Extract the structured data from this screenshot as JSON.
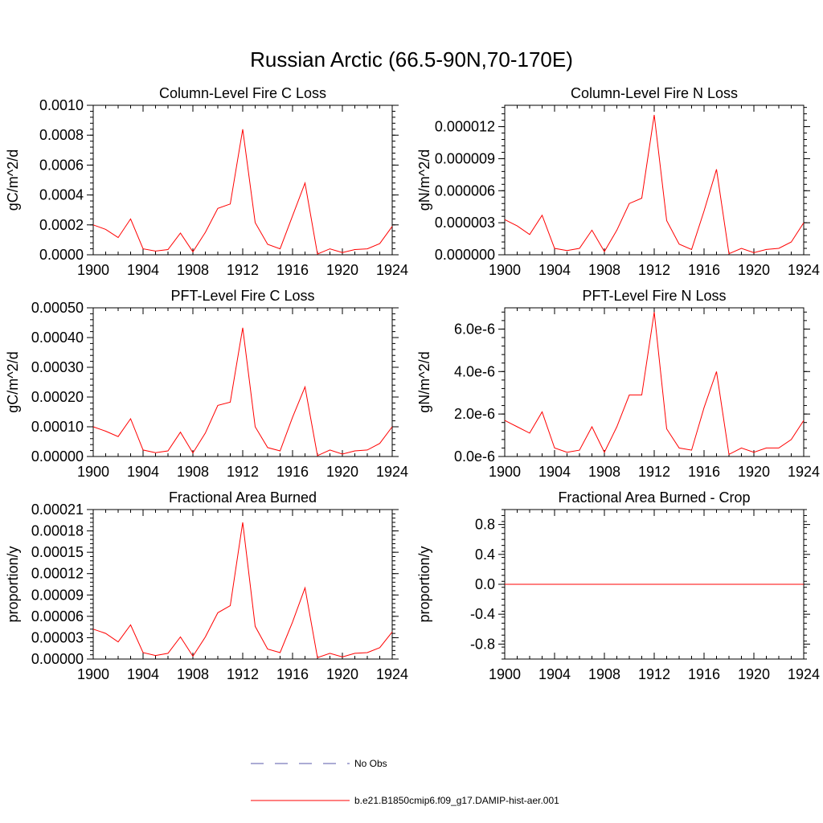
{
  "figure": {
    "title": "Russian Arctic (66.5-90N,70-170E)"
  },
  "colors": {
    "model_line": "#ff0000",
    "obs_line": "#5a5aa8",
    "axes": "#000000"
  },
  "legend": {
    "placement": "bottom-center",
    "entries": [
      {
        "label": "No Obs",
        "style": "dashed",
        "color": "#5a5aa8"
      },
      {
        "label": "b.e21.B1850cmip6.f09_g17.DAMIP-hist-aer.001",
        "style": "solid",
        "color": "#ff0000"
      }
    ]
  },
  "chart_data": [
    {
      "type": "line",
      "title": "Column-Level Fire C Loss",
      "xlabel": "",
      "ylabel": "gC/m^2/d",
      "xlim": [
        1900,
        1924
      ],
      "ylim": [
        0,
        0.001
      ],
      "xticks": [
        1900,
        1904,
        1908,
        1912,
        1916,
        1920,
        1924
      ],
      "xtick_labels": [
        "1900",
        "1904",
        "1908",
        "1912",
        "1916",
        "1920",
        "1924"
      ],
      "yticks": [
        0,
        0.0002,
        0.0004,
        0.0006,
        0.0008,
        0.001
      ],
      "ytick_labels": [
        "0.0000",
        "0.0002",
        "0.0004",
        "0.0006",
        "0.0008",
        "0.0010"
      ],
      "grid": false,
      "x": [
        1900,
        1901,
        1902,
        1903,
        1904,
        1905,
        1906,
        1907,
        1908,
        1909,
        1910,
        1911,
        1912,
        1913,
        1914,
        1915,
        1916,
        1917,
        1918,
        1919,
        1920,
        1921,
        1922,
        1923,
        1924
      ],
      "series": [
        {
          "values": [
            0.0002,
            0.00017,
            0.000115,
            0.00024,
            4e-05,
            2.5e-05,
            3.5e-05,
            0.000145,
            2e-05,
            0.00015,
            0.00031,
            0.00034,
            0.00084,
            0.000215,
            7e-05,
            4e-05,
            0.00026,
            0.00048,
            5e-06,
            4e-05,
            1.5e-05,
            3.5e-05,
            4e-05,
            7.5e-05,
            0.00019
          ],
          "color": "#ff0000"
        }
      ]
    },
    {
      "type": "line",
      "title": "Column-Level Fire N Loss",
      "xlabel": "",
      "ylabel": "gN/m^2/d",
      "xlim": [
        1900,
        1924
      ],
      "ylim": [
        0,
        1.4e-05
      ],
      "xticks": [
        1900,
        1904,
        1908,
        1912,
        1916,
        1920,
        1924
      ],
      "xtick_labels": [
        "1900",
        "1904",
        "1908",
        "1912",
        "1916",
        "1920",
        "1924"
      ],
      "yticks": [
        0,
        3e-06,
        6e-06,
        9e-06,
        1.2e-05
      ],
      "ytick_labels": [
        "0.000000",
        "0.000003",
        "0.000006",
        "0.000009",
        "0.000012"
      ],
      "grid": false,
      "x": [
        1900,
        1901,
        1902,
        1903,
        1904,
        1905,
        1906,
        1907,
        1908,
        1909,
        1910,
        1911,
        1912,
        1913,
        1914,
        1915,
        1916,
        1917,
        1918,
        1919,
        1920,
        1921,
        1922,
        1923,
        1924
      ],
      "series": [
        {
          "values": [
            3.3e-06,
            2.7e-06,
            1.9e-06,
            3.7e-06,
            6e-07,
            4e-07,
            6e-07,
            2.3e-06,
            3e-07,
            2.3e-06,
            4.8e-06,
            5.3e-06,
            1.31e-05,
            3.2e-06,
            1e-06,
            5e-07,
            4.1e-06,
            8e-06,
            1e-07,
            6e-07,
            2e-07,
            5e-07,
            6e-07,
            1.2e-06,
            3e-06
          ],
          "color": "#ff0000"
        }
      ]
    },
    {
      "type": "line",
      "title": "PFT-Level Fire C Loss",
      "xlabel": "",
      "ylabel": "gC/m^2/d",
      "xlim": [
        1900,
        1924
      ],
      "ylim": [
        0,
        0.0005
      ],
      "xticks": [
        1900,
        1904,
        1908,
        1912,
        1916,
        1920,
        1924
      ],
      "xtick_labels": [
        "1900",
        "1904",
        "1908",
        "1912",
        "1916",
        "1920",
        "1924"
      ],
      "yticks": [
        0,
        0.0001,
        0.0002,
        0.0003,
        0.0004,
        0.0005
      ],
      "ytick_labels": [
        "0.00000",
        "0.00010",
        "0.00020",
        "0.00030",
        "0.00040",
        "0.00050"
      ],
      "grid": false,
      "x": [
        1900,
        1901,
        1902,
        1903,
        1904,
        1905,
        1906,
        1907,
        1908,
        1909,
        1910,
        1911,
        1912,
        1913,
        1914,
        1915,
        1916,
        1917,
        1918,
        1919,
        1920,
        1921,
        1922,
        1923,
        1924
      ],
      "series": [
        {
          "values": [
            0.0001,
            8.5e-05,
            6.7e-05,
            0.000127,
            2.2e-05,
            1.3e-05,
            1.9e-05,
            8.2e-05,
            1.2e-05,
            7.9e-05,
            0.000172,
            0.000183,
            0.000433,
            0.0001,
            3e-05,
            1.9e-05,
            0.000132,
            0.000234,
            3e-06,
            2.2e-05,
            8e-06,
            1.9e-05,
            2.2e-05,
            4.4e-05,
            0.0001
          ],
          "color": "#ff0000"
        }
      ]
    },
    {
      "type": "line",
      "title": "PFT-Level Fire N Loss",
      "xlabel": "",
      "ylabel": "gN/m^2/d",
      "xlim": [
        1900,
        1924
      ],
      "ylim": [
        0,
        7e-06
      ],
      "xticks": [
        1900,
        1904,
        1908,
        1912,
        1916,
        1920,
        1924
      ],
      "xtick_labels": [
        "1900",
        "1904",
        "1908",
        "1912",
        "1916",
        "1920",
        "1924"
      ],
      "yticks": [
        0,
        2e-06,
        4e-06,
        6e-06
      ],
      "ytick_labels": [
        "0.0e-6",
        "2.0e-6",
        "4.0e-6",
        "6.0e-6"
      ],
      "grid": false,
      "x": [
        1900,
        1901,
        1902,
        1903,
        1904,
        1905,
        1906,
        1907,
        1908,
        1909,
        1910,
        1911,
        1912,
        1913,
        1914,
        1915,
        1916,
        1917,
        1918,
        1919,
        1920,
        1921,
        1922,
        1923,
        1924
      ],
      "series": [
        {
          "values": [
            1.7e-06,
            1.4e-06,
            1.1e-06,
            2.1e-06,
            4e-07,
            2e-07,
            3e-07,
            1.4e-06,
            2e-07,
            1.4e-06,
            2.9e-06,
            2.9e-06,
            6.8e-06,
            1.3e-06,
            4e-07,
            3e-07,
            2.3e-06,
            4e-06,
            1e-07,
            4e-07,
            2e-07,
            4e-07,
            4e-07,
            8e-07,
            1.7e-06
          ],
          "color": "#ff0000"
        }
      ]
    },
    {
      "type": "line",
      "title": "Fractional Area Burned",
      "xlabel": "",
      "ylabel": "proportion/y",
      "xlim": [
        1900,
        1924
      ],
      "ylim": [
        0,
        0.00021
      ],
      "xticks": [
        1900,
        1904,
        1908,
        1912,
        1916,
        1920,
        1924
      ],
      "xtick_labels": [
        "1900",
        "1904",
        "1908",
        "1912",
        "1916",
        "1920",
        "1924"
      ],
      "yticks": [
        0,
        3e-05,
        6e-05,
        9e-05,
        0.00012,
        0.00015,
        0.00018,
        0.00021
      ],
      "ytick_labels": [
        "0.00000",
        "0.00003",
        "0.00006",
        "0.00009",
        "0.00012",
        "0.00015",
        "0.00018",
        "0.00021"
      ],
      "grid": false,
      "x": [
        1900,
        1901,
        1902,
        1903,
        1904,
        1905,
        1906,
        1907,
        1908,
        1909,
        1910,
        1911,
        1912,
        1913,
        1914,
        1915,
        1916,
        1917,
        1918,
        1919,
        1920,
        1921,
        1922,
        1923,
        1924
      ],
      "series": [
        {
          "values": [
            4.2e-05,
            3.6e-05,
            2.4e-05,
            4.8e-05,
            9e-06,
            5e-06,
            8e-06,
            3.1e-05,
            4e-06,
            3.1e-05,
            6.5e-05,
            7.5e-05,
            0.000192,
            4.6e-05,
            1.4e-05,
            9e-06,
            5.2e-05,
            0.0001,
            2e-06,
            8e-06,
            3e-06,
            8e-06,
            9e-06,
            1.6e-05,
            3.8e-05
          ],
          "color": "#ff0000"
        }
      ]
    },
    {
      "type": "line",
      "title": "Fractional Area Burned - Crop",
      "xlabel": "",
      "ylabel": "proportion/y",
      "xlim": [
        1900,
        1924
      ],
      "ylim": [
        -1,
        1
      ],
      "xticks": [
        1900,
        1904,
        1908,
        1912,
        1916,
        1920,
        1924
      ],
      "xtick_labels": [
        "1900",
        "1904",
        "1908",
        "1912",
        "1916",
        "1920",
        "1924"
      ],
      "yticks": [
        -0.8,
        -0.4,
        0,
        0.4,
        0.8
      ],
      "ytick_labels": [
        "-0.8",
        "-0.4",
        "0.0",
        "0.4",
        "0.8"
      ],
      "grid": false,
      "x": [
        1900,
        1901,
        1902,
        1903,
        1904,
        1905,
        1906,
        1907,
        1908,
        1909,
        1910,
        1911,
        1912,
        1913,
        1914,
        1915,
        1916,
        1917,
        1918,
        1919,
        1920,
        1921,
        1922,
        1923,
        1924
      ],
      "series": [
        {
          "values": [
            0,
            0,
            0,
            0,
            0,
            0,
            0,
            0,
            0,
            0,
            0,
            0,
            0,
            0,
            0,
            0,
            0,
            0,
            0,
            0,
            0,
            0,
            0,
            0,
            0
          ],
          "color": "#ff0000"
        }
      ]
    }
  ]
}
